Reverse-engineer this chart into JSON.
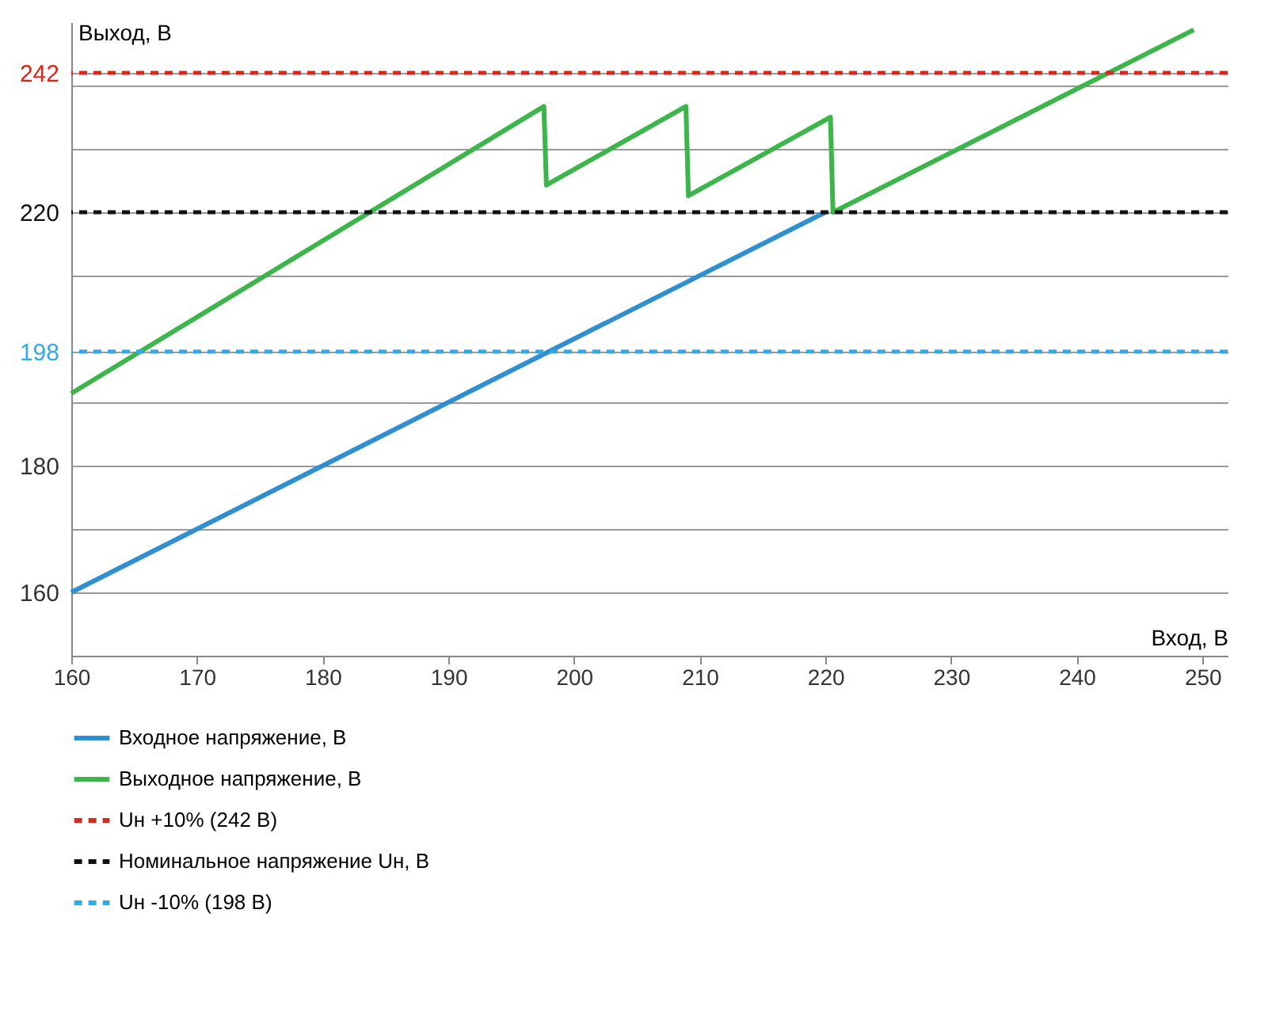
{
  "chart_data": {
    "type": "line",
    "xlabel": "Вход, В",
    "ylabel": "Выход, В",
    "series": [
      {
        "name": "Входное напряжение, В",
        "color": "#2f8fd0",
        "x": [
          160,
          220
        ],
        "values": [
          160,
          220
        ]
      },
      {
        "name": "Выходное напряжение, В",
        "color": "#3cb54a",
        "x": [
          160,
          197.6,
          197.8,
          208.9,
          209.1,
          220.4,
          220.6,
          249.3
        ],
        "values": [
          191.4,
          236.7,
          224.3,
          236.7,
          222.6,
          235,
          220,
          248.8
        ]
      }
    ],
    "ref_lines": [
      {
        "axis": "y",
        "value": 242,
        "label": "Uн +10% (242 В)",
        "color": "#d7281e",
        "line_style": "dashed"
      },
      {
        "axis": "y",
        "value": 220,
        "label": "Номинальное напряжение Uн, В",
        "color": "#111111",
        "line_style": "dashed"
      },
      {
        "axis": "y",
        "value": 198,
        "label": "Uн -10% (198 В)",
        "color": "#34a8e0",
        "line_style": "dashed"
      }
    ],
    "xlim": [
      160,
      252
    ],
    "ylim": [
      150,
      250
    ],
    "xticks": [
      160,
      170,
      180,
      190,
      200,
      210,
      220,
      230,
      240,
      250
    ],
    "yticks": [
      160,
      {
        "value": 170,
        "label": null
      },
      180,
      {
        "value": 190,
        "label": null
      },
      198,
      {
        "value": 210,
        "label": null
      },
      220,
      {
        "value": 230,
        "label": null
      },
      {
        "value": 240,
        "label": null
      },
      242
    ],
    "grid": "y",
    "legend": "bottom",
    "marker": "none",
    "line_style": "solid"
  }
}
